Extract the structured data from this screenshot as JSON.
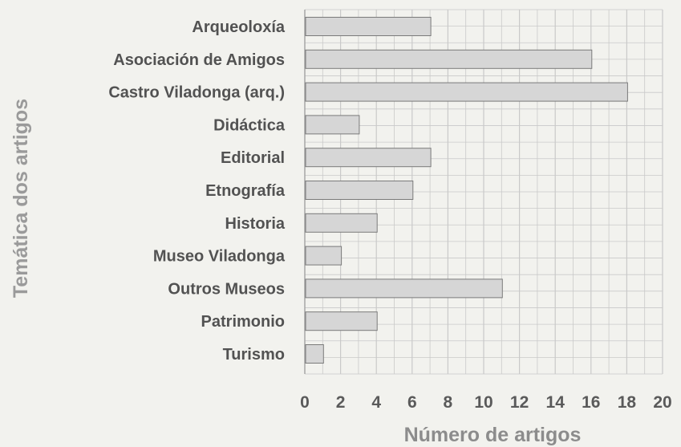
{
  "chart_data": {
    "type": "bar",
    "orientation": "horizontal",
    "title": "",
    "xlabel": "Número de artigos",
    "ylabel": "Temática dos artigos",
    "xlim": [
      0,
      20
    ],
    "x_ticks": [
      "0",
      "2",
      "4",
      "6",
      "8",
      "10",
      "12",
      "14",
      "16",
      "18",
      "20"
    ],
    "grid": true,
    "categories": [
      "Arqueoloxía",
      "Asociación de Amigos",
      "Castro Viladonga (arq.)",
      "Didáctica",
      "Editorial",
      "Etnografía",
      "Historia",
      "Museo Viladonga",
      "Outros Museos",
      "Patrimonio",
      "Turismo"
    ],
    "values": [
      7,
      16,
      18,
      3,
      7,
      6,
      4,
      2,
      11,
      4,
      1
    ],
    "colors": {
      "bar_fill": "#d6d6d6",
      "bar_stroke": "#7a7a7a",
      "grid": "#c9c9c9",
      "background": "#f2f2ee"
    }
  }
}
